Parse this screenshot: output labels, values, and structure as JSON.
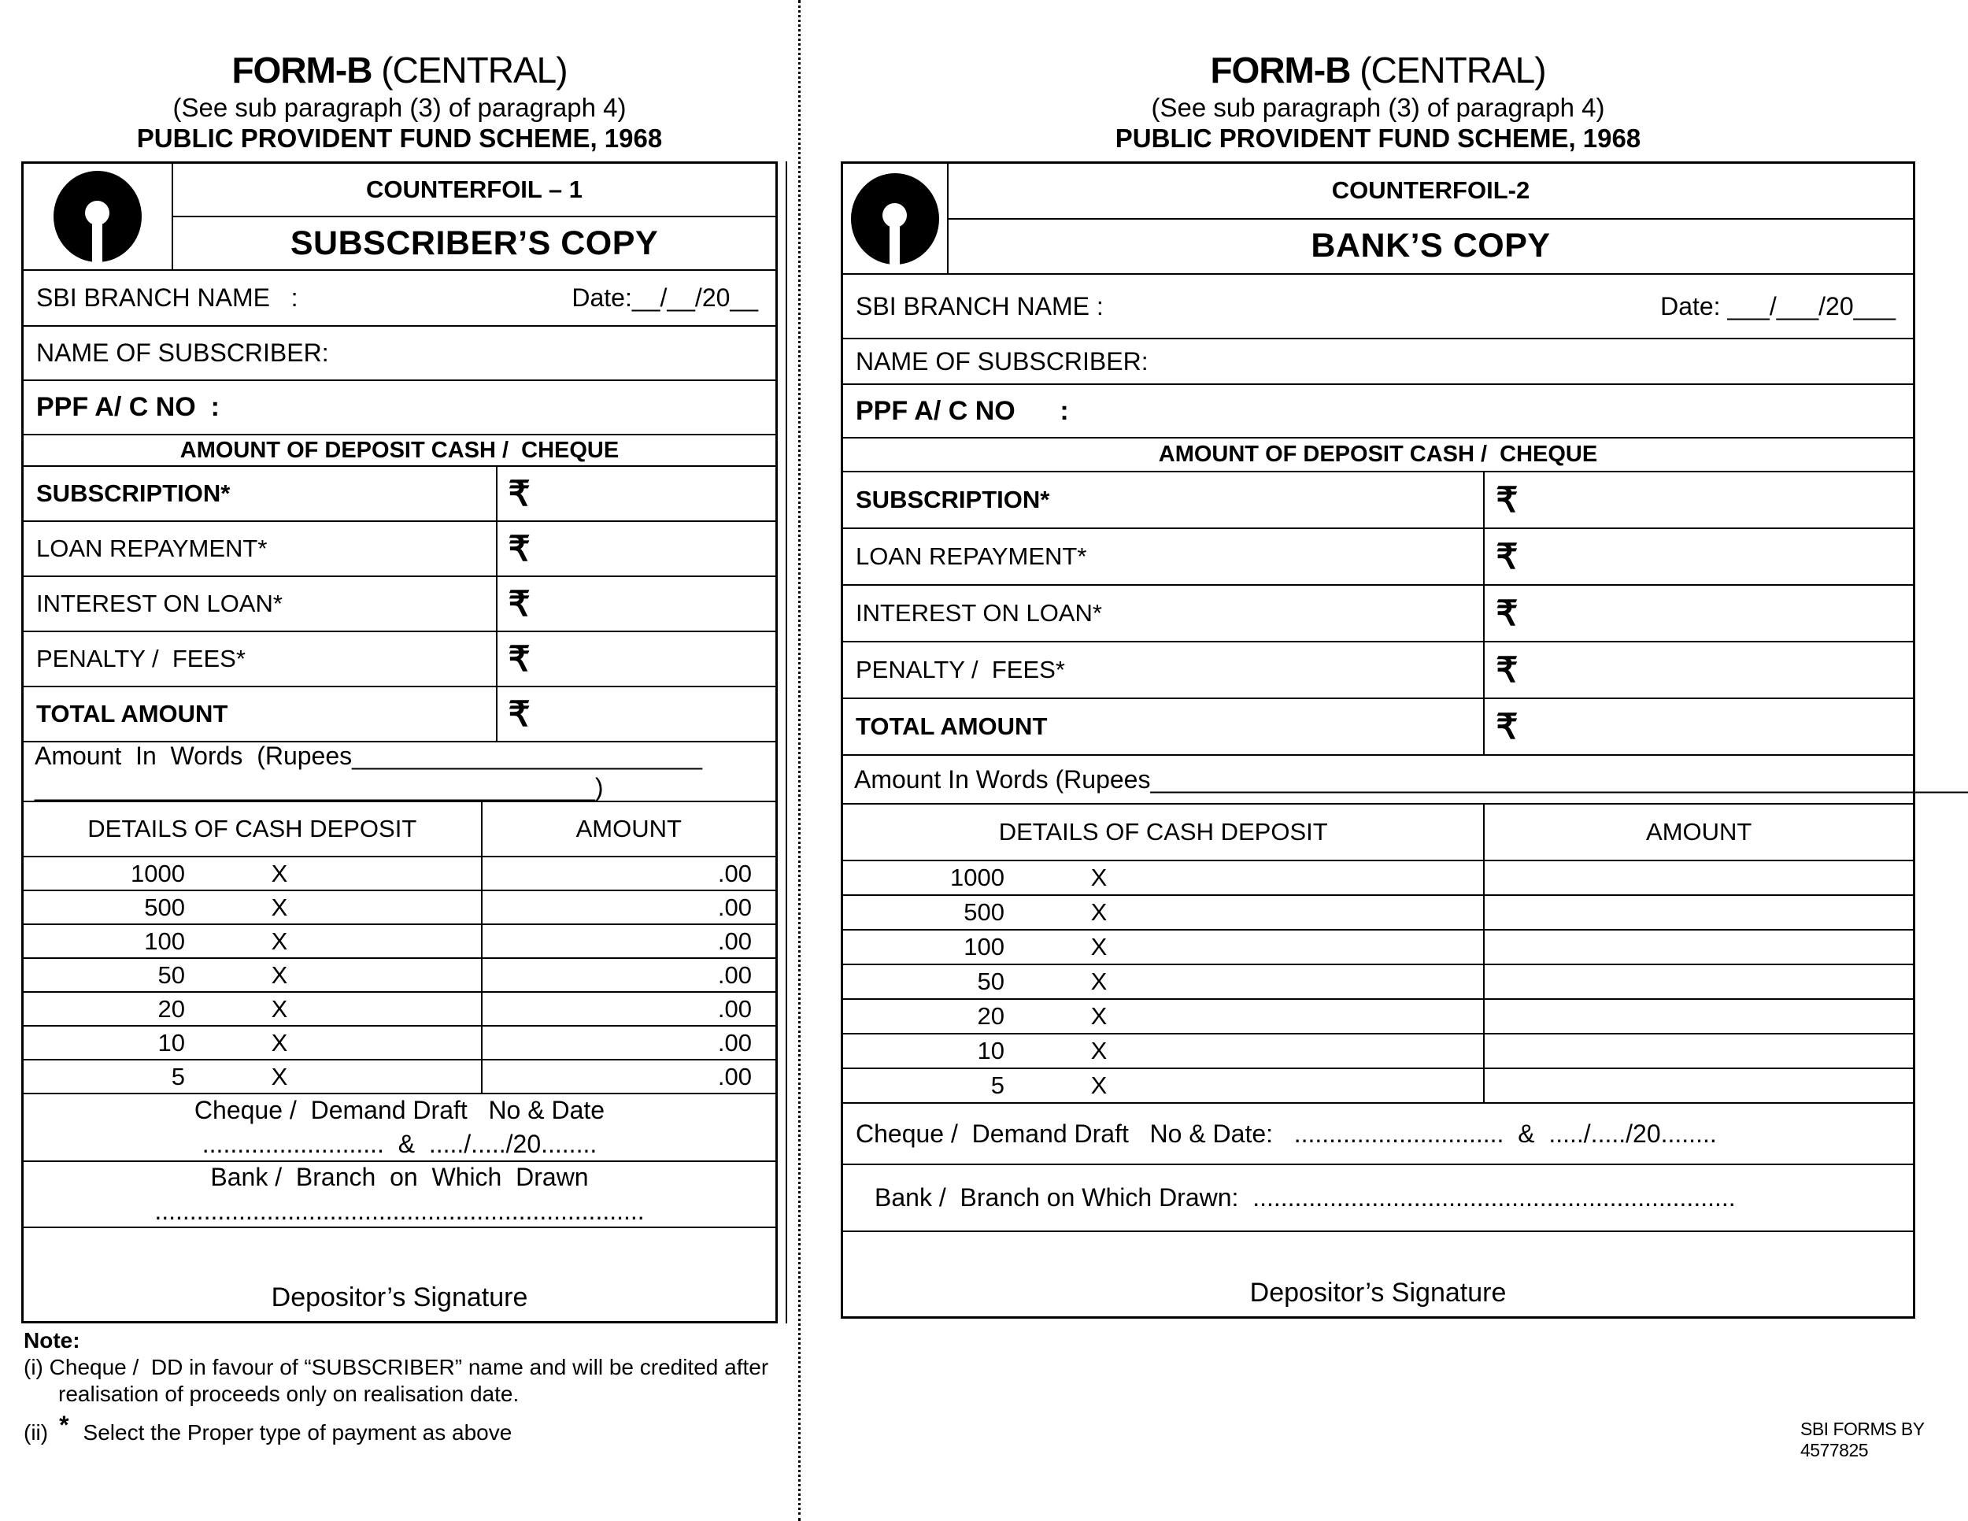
{
  "rupee": "₹",
  "header": {
    "title_bold": "FORM-B",
    "title_rest": " (CENTRAL)",
    "subtitle": "(See sub paragraph (3) of paragraph 4)",
    "scheme": "PUBLIC PROVIDENT FUND SCHEME, 1968"
  },
  "left": {
    "counterfoil": "COUNTERFOIL – 1",
    "copy": "SUBSCRIBER’S COPY",
    "branch_label": "SBI BRANCH NAME   :",
    "date": "Date:__/__/20__",
    "name_label": "NAME OF SUBSCRIBER:",
    "ppf_label": "PPF A/ C NO  :",
    "banner": "AMOUNT OF DEPOSIT CASH /  CHEQUE",
    "amount_rows": [
      {
        "label": "SUBSCRIPTION*"
      },
      {
        "label": "LOAN REPAYMENT*"
      },
      {
        "label": "INTEREST ON LOAN*"
      },
      {
        "label": "PENALTY /  FEES*"
      },
      {
        "label": "TOTAL AMOUNT"
      }
    ],
    "words_line1": "Amount  In  Words  (Rupees_________________________",
    "words_line2": "________________________________________)",
    "details_header": "DETAILS OF CASH DEPOSIT",
    "amount_header": "AMOUNT",
    "denominations": [
      {
        "value": "1000",
        "x": "X",
        "amount": ".00"
      },
      {
        "value": "500",
        "x": "X",
        "amount": ".00"
      },
      {
        "value": "100",
        "x": "X",
        "amount": ".00"
      },
      {
        "value": "50",
        "x": "X",
        "amount": ".00"
      },
      {
        "value": "20",
        "x": "X",
        "amount": ".00"
      },
      {
        "value": "10",
        "x": "X",
        "amount": ".00"
      },
      {
        "value": "5",
        "x": "X",
        "amount": ".00"
      }
    ],
    "cheque_line1": "Cheque /  Demand Draft   No & Date",
    "cheque_line2": "..........................  &  ...../...../20........",
    "bank_line1": "Bank /  Branch  on  Which  Drawn",
    "bank_line2": "......................................................................",
    "signature": "Depositor’s Signature"
  },
  "right": {
    "counterfoil": "COUNTERFOIL-2",
    "copy": "BANK’S COPY",
    "branch_label": "SBI BRANCH NAME :",
    "date": "Date: ___/___/20___",
    "name_label": "NAME OF SUBSCRIBER:",
    "ppf_label": "PPF A/ C NO      :",
    "banner": "AMOUNT OF DEPOSIT CASH /  CHEQUE",
    "amount_rows": [
      {
        "label": "SUBSCRIPTION*"
      },
      {
        "label": "LOAN REPAYMENT*"
      },
      {
        "label": "INTEREST ON LOAN*"
      },
      {
        "label": "PENALTY /  FEES*"
      },
      {
        "label": "TOTAL AMOUNT"
      }
    ],
    "words": "Amount In Words (Rupees___________________________________________________________)",
    "details_header": "DETAILS OF CASH DEPOSIT",
    "amount_header": "AMOUNT",
    "denominations": [
      {
        "value": "1000",
        "x": "X",
        "amount": ""
      },
      {
        "value": "500",
        "x": "X",
        "amount": ""
      },
      {
        "value": "100",
        "x": "X",
        "amount": ""
      },
      {
        "value": "50",
        "x": "X",
        "amount": ""
      },
      {
        "value": "20",
        "x": "X",
        "amount": ""
      },
      {
        "value": "10",
        "x": "X",
        "amount": ""
      },
      {
        "value": "5",
        "x": "X",
        "amount": ""
      }
    ],
    "cheque": "Cheque /  Demand Draft   No & Date:   ..............................  &  ...../...../20........",
    "bank": "Bank /  Branch on Which Drawn:  .....................................................................",
    "signature": "Depositor’s Signature"
  },
  "note": {
    "title": "Note:",
    "line1": "(i) Cheque /  DD in favour of “SUBSCRIBER” name and will be credited after",
    "line2": "realisation of proceeds only on realisation date.",
    "item2_prefix": "(ii)",
    "item2_star": "*",
    "item2_text": "Select the Proper type of payment as above"
  },
  "footer": "SBI FORMS BY 4577825"
}
